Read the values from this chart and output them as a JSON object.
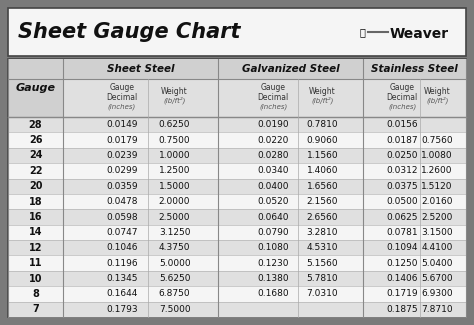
{
  "title": "Sheet Gauge Chart",
  "bg_outer": "#7a7a7a",
  "bg_title": "#f5f5f5",
  "bg_table": "#f0f0f0",
  "bg_header1": "#d0d0d0",
  "bg_header2": "#e0e0e0",
  "row_colors": [
    "#e0e0e0",
    "#f5f5f5"
  ],
  "border_dark": "#444444",
  "border_mid": "#888888",
  "border_light": "#aaaaaa",
  "gauges": [
    28,
    26,
    24,
    22,
    20,
    18,
    16,
    14,
    12,
    11,
    10,
    8,
    7
  ],
  "sheet_steel_dec": [
    "0.0149",
    "0.0179",
    "0.0239",
    "0.0299",
    "0.0359",
    "0.0478",
    "0.0598",
    "0.0747",
    "0.1046",
    "0.1196",
    "0.1345",
    "0.1644",
    "0.1793"
  ],
  "sheet_steel_wt": [
    "0.6250",
    "0.7500",
    "1.0000",
    "1.2500",
    "1.5000",
    "2.0000",
    "2.5000",
    "3.1250",
    "4.3750",
    "5.0000",
    "5.6250",
    "6.8750",
    "7.5000"
  ],
  "galv_dec": [
    "0.0190",
    "0.0220",
    "0.0280",
    "0.0340",
    "0.0400",
    "0.0520",
    "0.0640",
    "0.0790",
    "0.1080",
    "0.1230",
    "0.1380",
    "0.1680",
    ""
  ],
  "galv_wt": [
    "0.7810",
    "0.9060",
    "1.1560",
    "1.4060",
    "1.6560",
    "2.1560",
    "2.6560",
    "3.2810",
    "4.5310",
    "5.1560",
    "5.7810",
    "7.0310",
    ""
  ],
  "ss_dec": [
    "0.0156",
    "0.0187",
    "0.0250",
    "0.0312",
    "0.0375",
    "0.0500",
    "0.0625",
    "0.0781",
    "0.1094",
    "0.1250",
    "0.1406",
    "0.1719",
    "0.1875"
  ],
  "ss_wt": [
    "",
    "0.7560",
    "1.0080",
    "1.2600",
    "1.5120",
    "2.0160",
    "2.5200",
    "3.1500",
    "4.4100",
    "5.0400",
    "5.6700",
    "6.9300",
    "7.8710"
  ]
}
